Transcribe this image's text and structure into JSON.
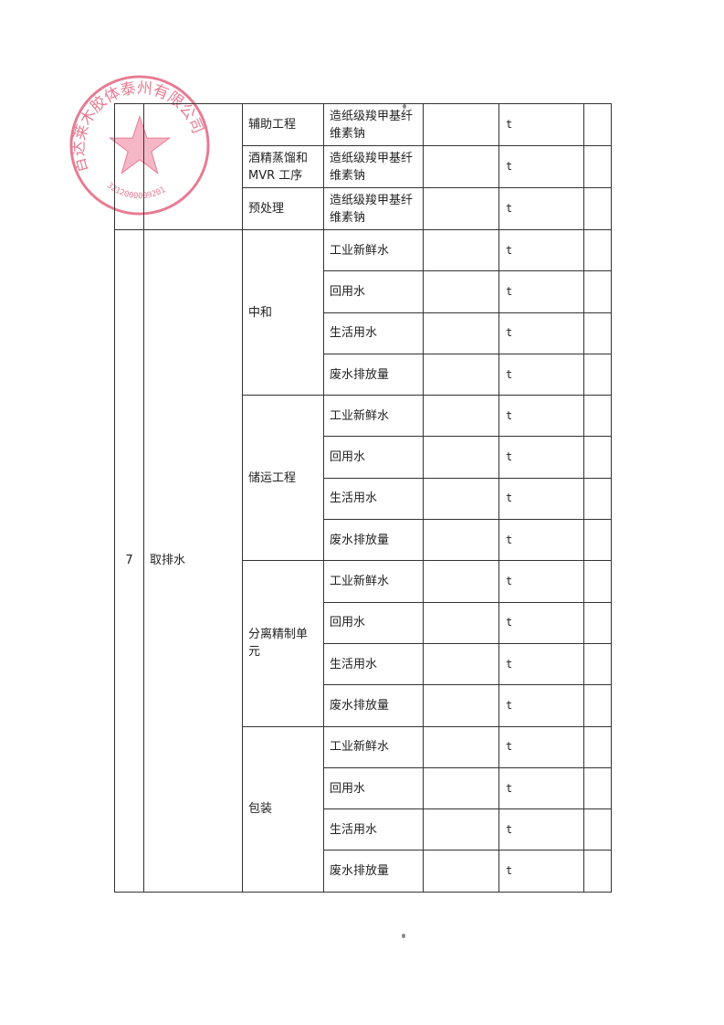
{
  "table": {
    "top_rows": [
      {
        "process": "辅助工程",
        "material": "造纸级羧甲基纤维素钠",
        "unit": "t"
      },
      {
        "process": "酒精蒸馏和MVR 工序",
        "material": "造纸级羧甲基纤维素钠",
        "unit": "t"
      },
      {
        "process": "预处理",
        "material": "造纸级羧甲基纤维素钠",
        "unit": "t"
      }
    ],
    "section": {
      "number": "7",
      "name": "取排水",
      "groups": [
        {
          "process": "中和",
          "items": [
            "工业新鲜水",
            "回用水",
            "生活用水",
            "废水排放量"
          ]
        },
        {
          "process": "储运工程",
          "items": [
            "工业新鲜水",
            "回用水",
            "生活用水",
            "废水排放量"
          ]
        },
        {
          "process": "分离精制单元",
          "items": [
            "工业新鲜水",
            "回用水",
            "生活用水",
            "废水排放量"
          ]
        },
        {
          "process": "包装",
          "items": [
            "工业新鲜水",
            "回用水",
            "生活用水",
            "废水排放量"
          ]
        }
      ],
      "unit": "t"
    }
  },
  "stamp": {
    "text": "达莱木胶体泰州有限公司",
    "number": "3212000009201",
    "color": "#e0506e"
  }
}
